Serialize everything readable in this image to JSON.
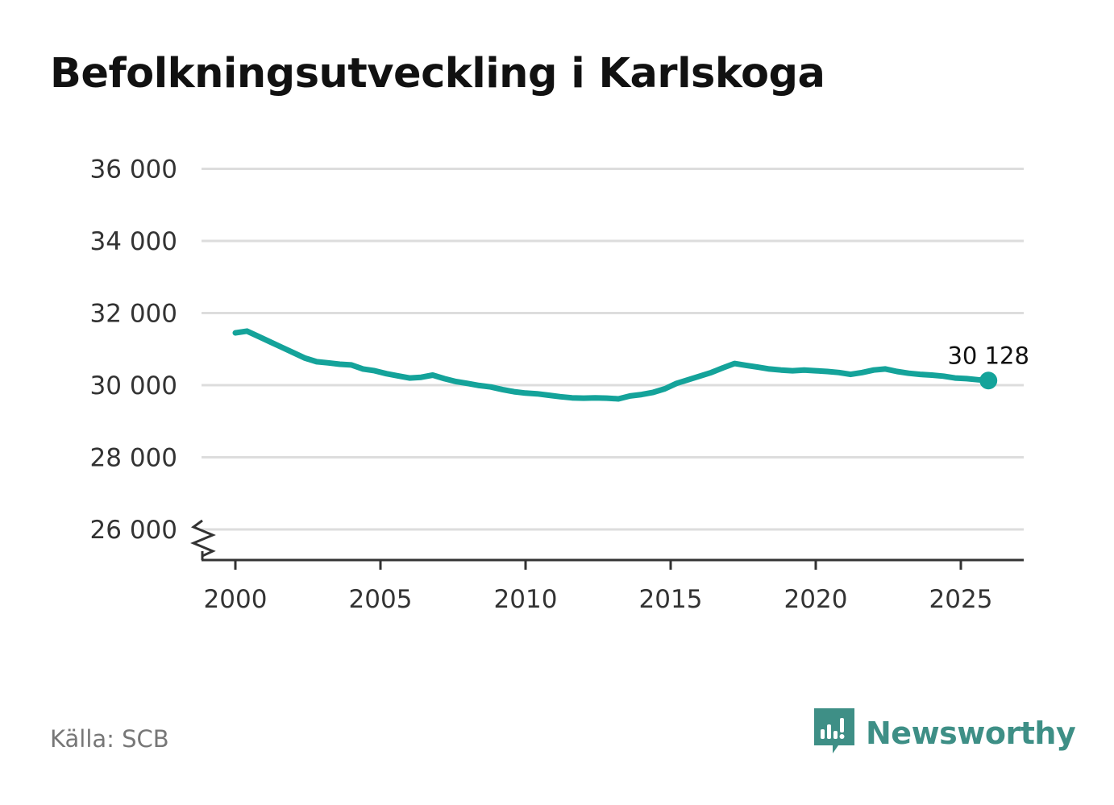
{
  "title": "Befolkningsutveckling i Karlskoga",
  "source": "Källa: SCB",
  "brand": "Newsworthy",
  "colors": {
    "line": "#14a39a",
    "grid": "#dddddd",
    "axis": "#333333",
    "brand": "#3e8f86"
  },
  "chart_data": {
    "type": "line",
    "title": "Befolkningsutveckling i Karlskoga",
    "xlabel": "",
    "ylabel": "",
    "ylim": [
      25000,
      36000
    ],
    "xlim": [
      1999,
      2027
    ],
    "yticks": [
      26000,
      28000,
      30000,
      32000,
      34000,
      36000
    ],
    "ytick_labels": [
      "26 000",
      "28 000",
      "30 000",
      "32 000",
      "34 000",
      "36 000"
    ],
    "xticks": [
      2000,
      2005,
      2010,
      2015,
      2020,
      2025
    ],
    "xtick_labels": [
      "2000",
      "2005",
      "2010",
      "2015",
      "2020",
      "2025"
    ],
    "axis_break": true,
    "grid": true,
    "end_label": "30 128",
    "series": [
      {
        "x": [
          2000.0,
          2000.4,
          2000.8,
          2001.2,
          2001.6,
          2002.0,
          2002.4,
          2002.8,
          2003.2,
          2003.6,
          2004.0,
          2004.4,
          2004.8,
          2005.2,
          2005.6,
          2006.0,
          2006.4,
          2006.8,
          2007.2,
          2007.6,
          2008.0,
          2008.4,
          2008.8,
          2009.2,
          2009.6,
          2010.0,
          2010.4,
          2010.8,
          2011.2,
          2011.6,
          2012.0,
          2012.4,
          2012.8,
          2013.2,
          2013.6,
          2014.0,
          2014.4,
          2014.8,
          2015.2,
          2015.6,
          2016.0,
          2016.4,
          2016.8,
          2017.2,
          2017.6,
          2018.0,
          2018.4,
          2018.8,
          2019.2,
          2019.6,
          2020.0,
          2020.4,
          2020.8,
          2021.2,
          2021.6,
          2022.0,
          2022.4,
          2022.8,
          2023.2,
          2023.6,
          2024.0,
          2024.4,
          2024.8,
          2025.2,
          2025.6,
          2025.95
        ],
        "values": [
          31450,
          31500,
          31350,
          31200,
          31050,
          30900,
          30750,
          30650,
          30620,
          30580,
          30560,
          30450,
          30400,
          30320,
          30260,
          30200,
          30220,
          30280,
          30180,
          30100,
          30050,
          29990,
          29950,
          29880,
          29820,
          29780,
          29760,
          29720,
          29680,
          29650,
          29640,
          29650,
          29640,
          29620,
          29700,
          29740,
          29800,
          29900,
          30050,
          30150,
          30250,
          30350,
          30480,
          30600,
          30550,
          30500,
          30450,
          30420,
          30400,
          30420,
          30400,
          30380,
          30350,
          30300,
          30350,
          30420,
          30450,
          30380,
          30330,
          30300,
          30280,
          30250,
          30200,
          30180,
          30150,
          30128
        ]
      }
    ]
  }
}
